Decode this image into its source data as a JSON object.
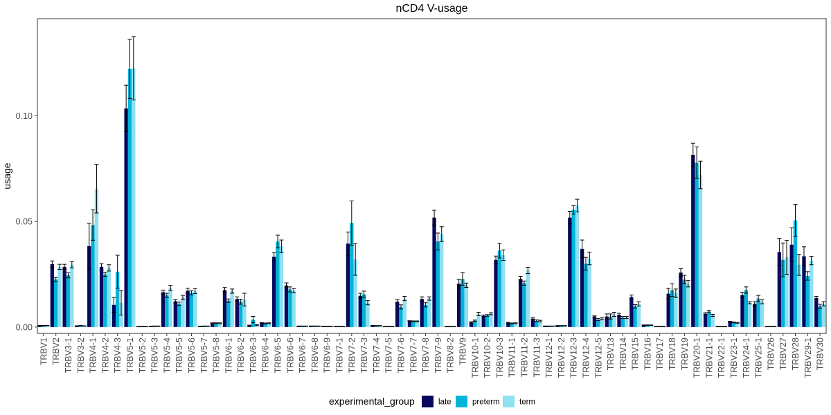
{
  "chart_data": {
    "type": "bar",
    "title": "nCD4 V-usage",
    "xlabel": "",
    "ylabel": "usage",
    "ylim": [
      -0.003,
      0.146
    ],
    "yticks": [
      0.0,
      0.05,
      0.1
    ],
    "ytick_labels": [
      "0.00",
      "0.05",
      "0.10"
    ],
    "grid": false,
    "legend": {
      "title": "experimental_group",
      "position": "bottom"
    },
    "categories": [
      "TRBV1",
      "TRBV2",
      "TRBV3-1",
      "TRBV3-2",
      "TRBV4-1",
      "TRBV4-2",
      "TRBV4-3",
      "TRBV5-1",
      "TRBV5-2",
      "TRBV5-3",
      "TRBV5-4",
      "TRBV5-5",
      "TRBV5-6",
      "TRBV5-7",
      "TRBV5-8",
      "TRBV6-1",
      "TRBV6-2",
      "TRBV6-3",
      "TRBV6-4",
      "TRBV6-5",
      "TRBV6-6",
      "TRBV6-7",
      "TRBV6-8",
      "TRBV6-9",
      "TRBV7-1",
      "TRBV7-2",
      "TRBV7-3",
      "TRBV7-4",
      "TRBV7-5",
      "TRBV7-6",
      "TRBV7-7",
      "TRBV7-8",
      "TRBV7-9",
      "TRBV8-2",
      "TRBV9",
      "TRBV10-1",
      "TRBV10-2",
      "TRBV10-3",
      "TRBV11-1",
      "TRBV11-2",
      "TRBV11-3",
      "TRBV12-1",
      "TRBV12-2",
      "TRBV12-3",
      "TRBV12-4",
      "TRBV12-5",
      "TRBV13",
      "TRBV14",
      "TRBV15",
      "TRBV16",
      "TRBV17",
      "TRBV18",
      "TRBV19",
      "TRBV20-1",
      "TRBV21-1",
      "TRBV22-1",
      "TRBV23-1",
      "TRBV24-1",
      "TRBV25-1",
      "TRBV26",
      "TRBV27",
      "TRBV28",
      "TRBV29-1",
      "TRBV30"
    ],
    "series": [
      {
        "name": "late",
        "color": "#08085e",
        "values": [
          0.0007,
          0.0298,
          0.0285,
          0.0005,
          0.0383,
          0.0285,
          0.0105,
          0.1035,
          0.0002,
          0.0003,
          0.0165,
          0.0122,
          0.0172,
          0.0003,
          0.0018,
          0.0175,
          0.0133,
          0.0007,
          0.0019,
          0.0333,
          0.0197,
          0.0004,
          0.0004,
          0.0003,
          0.0002,
          0.0395,
          0.0148,
          0.0007,
          0.0002,
          0.012,
          0.0028,
          0.0133,
          0.0518,
          0.0002,
          0.0205,
          0.0022,
          0.0053,
          0.0318,
          0.002,
          0.0228,
          0.004,
          0.0004,
          0.0006,
          0.0518,
          0.037,
          0.005,
          0.005,
          0.0058,
          0.0142,
          0.0009,
          0.0002,
          0.0158,
          0.0258,
          0.0815,
          0.0063,
          0.0002,
          0.0025,
          0.0152,
          0.011,
          0.0002,
          0.0355,
          0.039,
          0.0335,
          0.0137
        ],
        "errors": [
          0.0001,
          0.0015,
          0.0012,
          0.0001,
          0.0108,
          0.0015,
          0.0035,
          0.011,
          0.0001,
          0.0001,
          0.001,
          0.0008,
          0.0012,
          0.0001,
          0.0002,
          0.0012,
          0.001,
          0.0002,
          0.0002,
          0.002,
          0.0012,
          0.0001,
          0.0001,
          0.0001,
          0.0001,
          0.0055,
          0.0012,
          0.0001,
          0.0001,
          0.001,
          0.0002,
          0.001,
          0.0035,
          0.0001,
          0.002,
          0.0003,
          0.0004,
          0.0018,
          0.0002,
          0.0012,
          0.0005,
          0.0001,
          0.0001,
          0.003,
          0.0042,
          0.0003,
          0.0012,
          0.0007,
          0.001,
          0.0001,
          0.0001,
          0.0025,
          0.0018,
          0.0055,
          0.0005,
          0.0001,
          0.0002,
          0.0012,
          0.001,
          0.0001,
          0.0065,
          0.008,
          0.0045,
          0.0008
        ]
      },
      {
        "name": "preterm",
        "color": "#00b4d8",
        "values": [
          0.0007,
          0.0225,
          0.0245,
          0.0007,
          0.0483,
          0.025,
          0.0262,
          0.1222,
          0.0002,
          0.0004,
          0.015,
          0.011,
          0.0162,
          0.0004,
          0.0018,
          0.0125,
          0.012,
          0.0035,
          0.0017,
          0.0405,
          0.0178,
          0.0004,
          0.0004,
          0.0003,
          0.0002,
          0.0492,
          0.0155,
          0.0006,
          0.0002,
          0.0095,
          0.0027,
          0.0105,
          0.0405,
          0.0002,
          0.0228,
          0.003,
          0.0055,
          0.0362,
          0.0017,
          0.0208,
          0.003,
          0.0004,
          0.0006,
          0.0555,
          0.03,
          0.0035,
          0.005,
          0.0045,
          0.0098,
          0.0009,
          0.0002,
          0.0175,
          0.0225,
          0.0778,
          0.0073,
          0.0002,
          0.0022,
          0.0175,
          0.0135,
          0.0002,
          0.0318,
          0.0505,
          0.0242,
          0.0098
        ],
        "errors": [
          0.0001,
          0.001,
          0.0012,
          0.0001,
          0.0072,
          0.001,
          0.0078,
          0.014,
          0.0001,
          0.0001,
          0.001,
          0.0008,
          0.001,
          0.0001,
          0.0002,
          0.0008,
          0.0012,
          0.0015,
          0.0002,
          0.003,
          0.0012,
          0.0001,
          0.0001,
          0.0001,
          0.0001,
          0.0105,
          0.0015,
          0.0001,
          0.0001,
          0.001,
          0.0002,
          0.001,
          0.004,
          0.0001,
          0.003,
          0.0003,
          0.0004,
          0.0035,
          0.0002,
          0.001,
          0.0004,
          0.0001,
          0.0001,
          0.002,
          0.003,
          0.0005,
          0.0012,
          0.0005,
          0.0008,
          0.0001,
          0.0001,
          0.003,
          0.002,
          0.0075,
          0.0006,
          0.0001,
          0.0002,
          0.0015,
          0.0015,
          0.0001,
          0.008,
          0.0075,
          0.002,
          0.001
        ]
      },
      {
        "name": "term",
        "color": "#8ee0f2",
        "values": [
          0.0007,
          0.0285,
          0.0295,
          0.0005,
          0.0655,
          0.028,
          0.0115,
          0.1225,
          0.0002,
          0.0004,
          0.0185,
          0.014,
          0.017,
          0.0004,
          0.0018,
          0.017,
          0.013,
          0.0009,
          0.0018,
          0.0382,
          0.0172,
          0.0004,
          0.0004,
          0.0003,
          0.0002,
          0.032,
          0.0115,
          0.0006,
          0.0002,
          0.0135,
          0.0027,
          0.0135,
          0.044,
          0.0002,
          0.0198,
          0.0062,
          0.0063,
          0.034,
          0.0018,
          0.0268,
          0.0028,
          0.0004,
          0.0006,
          0.0575,
          0.0325,
          0.004,
          0.006,
          0.0045,
          0.011,
          0.0009,
          0.0002,
          0.016,
          0.0205,
          0.072,
          0.0055,
          0.0002,
          0.002,
          0.0115,
          0.012,
          0.0002,
          0.033,
          0.0295,
          0.0315,
          0.011
        ],
        "errors": [
          0.0001,
          0.0012,
          0.0015,
          0.0001,
          0.0115,
          0.0015,
          0.0058,
          0.015,
          0.0001,
          0.0001,
          0.0012,
          0.001,
          0.0012,
          0.0001,
          0.0002,
          0.001,
          0.003,
          0.0002,
          0.0002,
          0.003,
          0.001,
          0.0001,
          0.0001,
          0.0001,
          0.0001,
          0.0075,
          0.001,
          0.0001,
          0.0001,
          0.001,
          0.0002,
          0.0008,
          0.0035,
          0.0001,
          0.001,
          0.0008,
          0.0005,
          0.0025,
          0.0002,
          0.0015,
          0.0004,
          0.0001,
          0.0001,
          0.003,
          0.003,
          0.0005,
          0.001,
          0.0005,
          0.001,
          0.0001,
          0.0001,
          0.002,
          0.0015,
          0.0065,
          0.0005,
          0.0001,
          0.0002,
          0.0005,
          0.001,
          0.0001,
          0.008,
          0.005,
          0.002,
          0.001
        ]
      }
    ]
  }
}
